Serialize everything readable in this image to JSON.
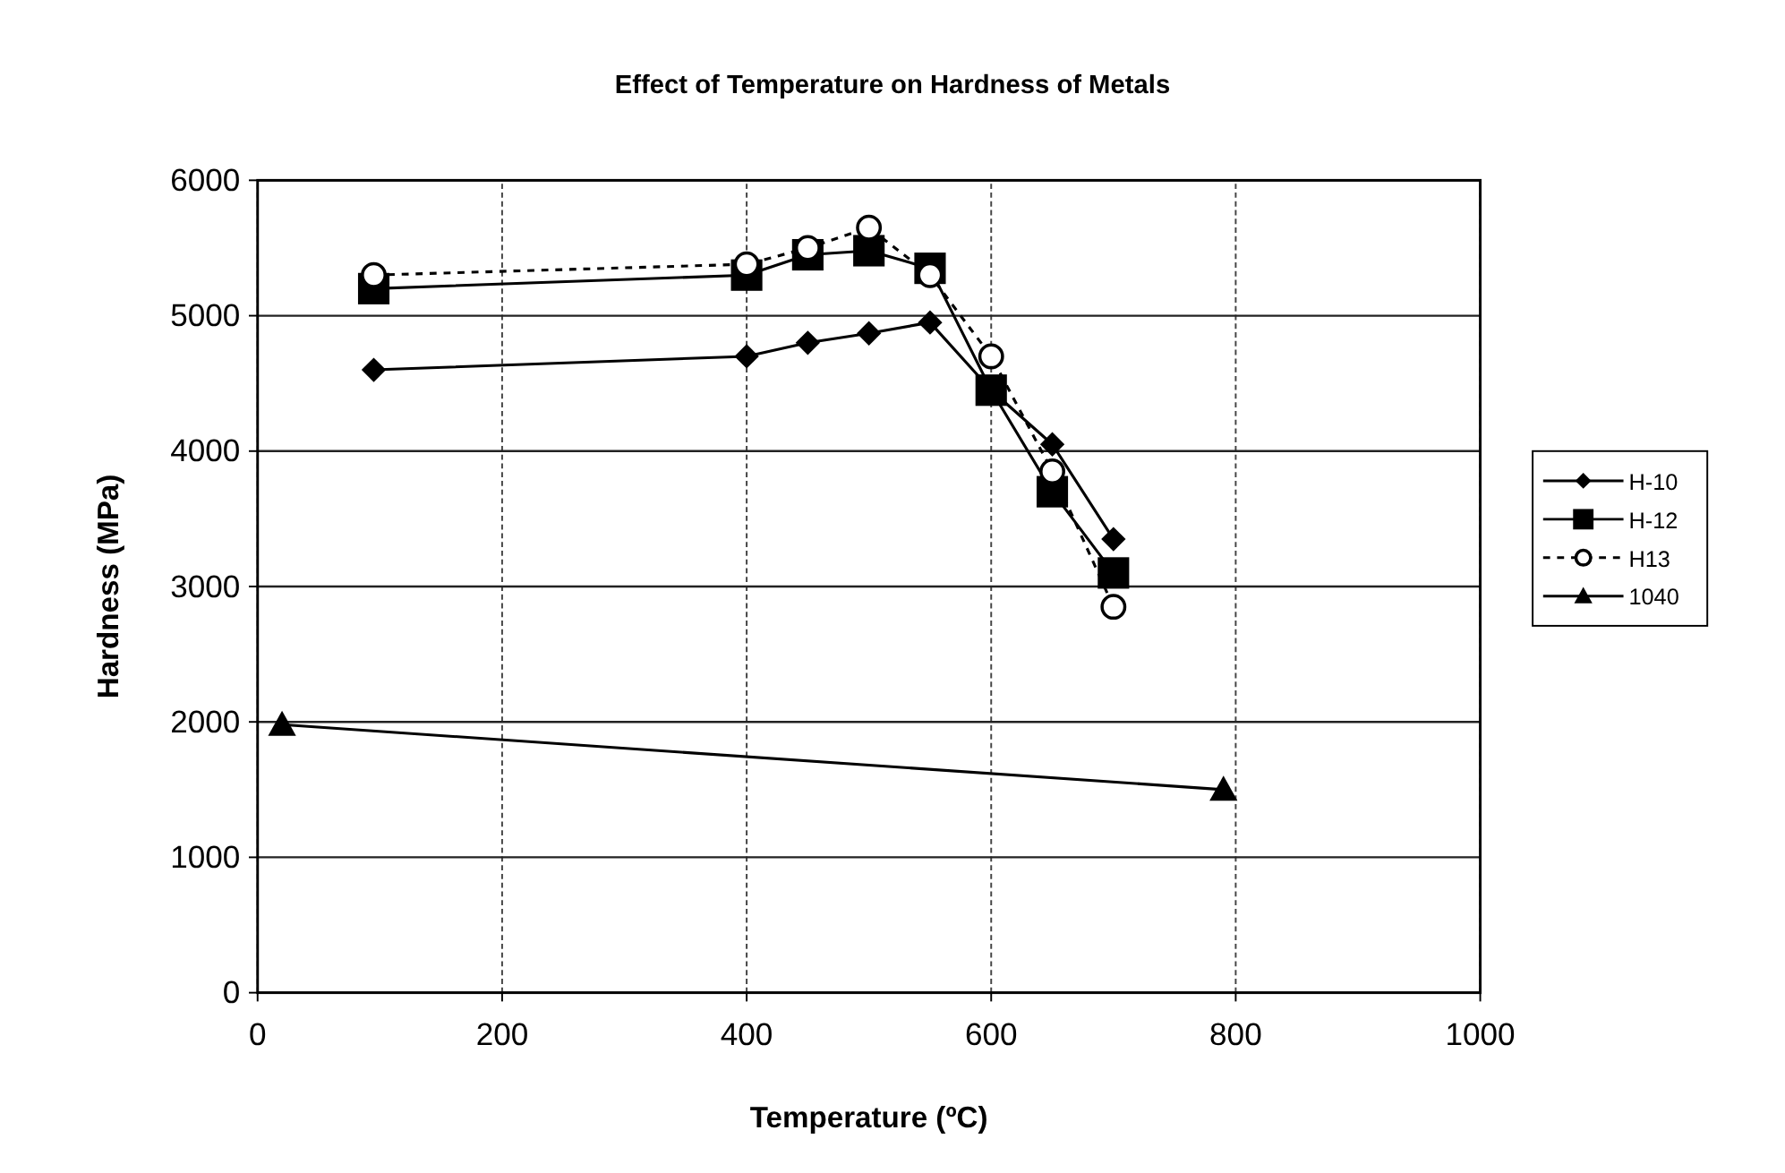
{
  "chart_data": {
    "type": "line",
    "title": "Effect of Temperature on Hardness of Metals",
    "xlabel": "Temperature (ºC)",
    "ylabel": "Hardness (MPa)",
    "xlim": [
      0,
      1000
    ],
    "xticks": [
      0,
      200,
      400,
      600,
      800,
      1000
    ],
    "ylim": [
      0,
      6000
    ],
    "yticks": [
      0,
      1000,
      2000,
      3000,
      4000,
      5000,
      6000
    ],
    "grid": true,
    "legend": "right",
    "series": [
      {
        "name": "H-10",
        "color": "#000000",
        "marker": "diamond",
        "line_style": "solid",
        "x": [
          95,
          400,
          450,
          500,
          550,
          600,
          650,
          700
        ],
        "values": [
          4600,
          4700,
          4800,
          4870,
          4950,
          4450,
          4050,
          3350
        ]
      },
      {
        "name": "H-12",
        "color": "#000000",
        "marker": "square",
        "line_style": "solid",
        "x": [
          95,
          400,
          450,
          500,
          550,
          600,
          650,
          700
        ],
        "values": [
          5200,
          5300,
          5450,
          5480,
          5350,
          4450,
          3700,
          3100
        ]
      },
      {
        "name": "H13",
        "color": "#000000",
        "marker": "circle",
        "line_style": "dashed",
        "x": [
          95,
          400,
          450,
          500,
          550,
          600,
          650,
          700
        ],
        "values": [
          5300,
          5380,
          5500,
          5650,
          5300,
          4700,
          3850,
          2850
        ]
      },
      {
        "name": "1040",
        "color": "#000000",
        "marker": "triangle",
        "line_style": "solid",
        "x": [
          20,
          790
        ],
        "values": [
          1980,
          1500
        ]
      }
    ]
  }
}
